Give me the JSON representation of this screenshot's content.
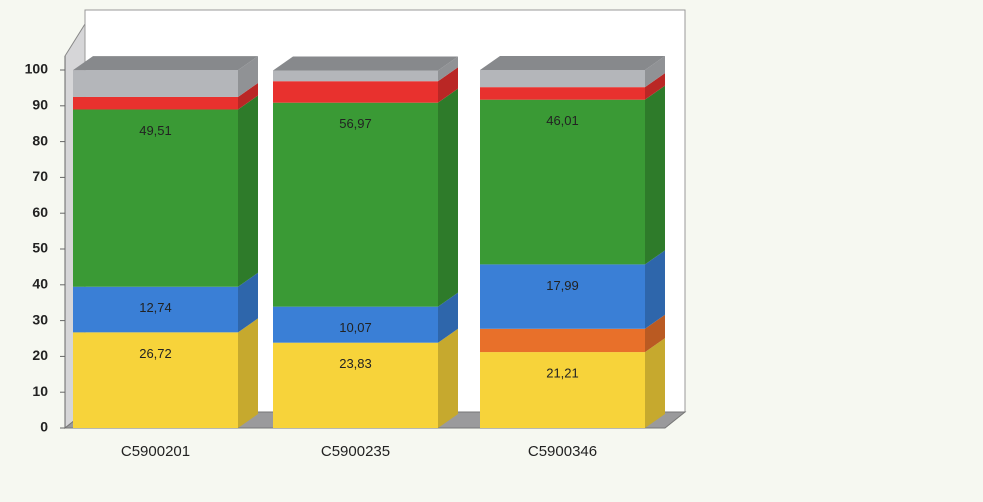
{
  "chart_data": {
    "type": "bar3d_stacked",
    "categories": [
      "C5900201",
      "C5900235",
      "C5900346"
    ],
    "series": [
      {
        "color": "#f7d33a",
        "values": [
          26.72,
          23.83,
          21.21
        ],
        "value_labels": [
          "26,72",
          "23,83",
          "21,21"
        ]
      },
      {
        "color": "#e8702a",
        "values": [
          0,
          0,
          6.5
        ]
      },
      {
        "color": "#3a7fd6",
        "values": [
          12.74,
          10.07,
          17.99
        ],
        "value_labels": [
          "12,74",
          "10,07",
          "17,99"
        ]
      },
      {
        "color": "#3a9a35",
        "values": [
          49.51,
          56.97,
          46.01
        ],
        "value_labels": [
          "49,51",
          "56,97",
          "46,01"
        ]
      },
      {
        "color": "#e8312e",
        "values": [
          3.5,
          6,
          3.5
        ]
      },
      {
        "color": "#b4b6ba",
        "values": [
          7.5,
          3,
          4.8
        ]
      }
    ],
    "ylim": [
      0,
      100
    ],
    "yticks": [
      0,
      10,
      20,
      30,
      40,
      50,
      60,
      70,
      80,
      90,
      100
    ],
    "grid": false
  }
}
